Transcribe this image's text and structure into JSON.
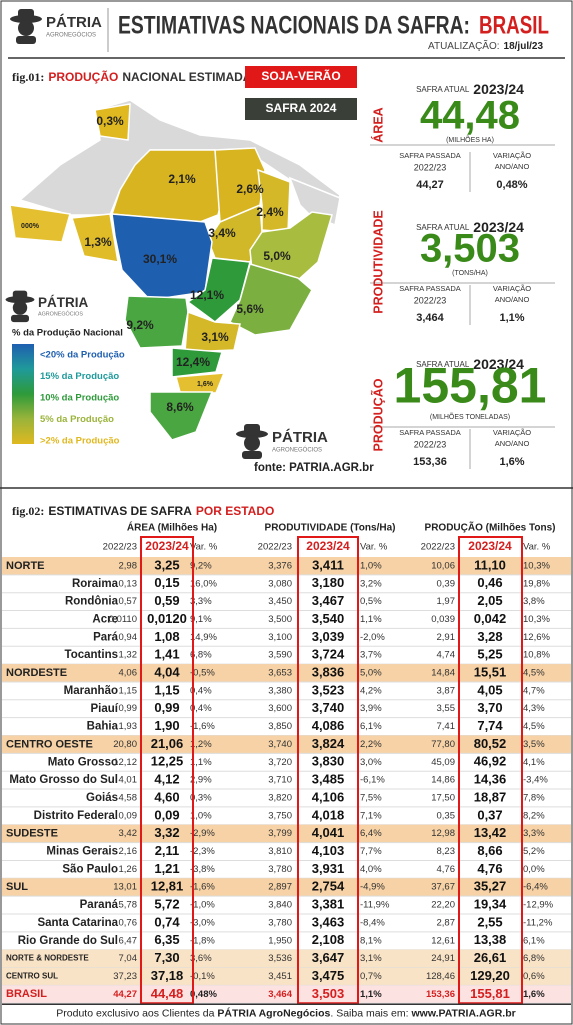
{
  "header": {
    "logo": "PÁTRIA",
    "logo_sub": "AGRONEGÓCIOS",
    "title": "ESTIMATIVAS NACIONAIS DA SAFRA:",
    "title_highlight": "BRASIL",
    "update_label": "ATUALIZAÇÃO:",
    "update_date": "18/jul/23"
  },
  "fig01": {
    "label": "fig.01:",
    "title_1": "PRODUÇÃO",
    "title_2": "NACIONAL ESTIMADA",
    "badge_crop": "SOJA-VERÃO",
    "badge_season": "SAFRA 2024",
    "map_labels": [
      "0,3%",
      "2,1%",
      "2,6%",
      "2,4%",
      "3,4%",
      "000%",
      "1,3%",
      "30,1%",
      "5,0%",
      "12,1%",
      "5,6%",
      "9,2%",
      "3,1%",
      "12,4%",
      "1,6%",
      "8,6%"
    ],
    "legend_title": "% da Produção Nacional",
    "legend": [
      {
        "text": "<20% da Produção",
        "color": "#1f5fb0"
      },
      {
        "text": "15% da Produção",
        "color": "#1f9a9a"
      },
      {
        "text": "10% da Produção",
        "color": "#2e9a3a"
      },
      {
        "text": "5% da Produção",
        "color": "#9ab43a"
      },
      {
        "text": ">2% da Produção",
        "color": "#e0b820"
      }
    ],
    "logo": "PÁTRIA",
    "logo_sub": "AGRONEGÓCIOS",
    "source": "fonte: PATRIA.AGR.br"
  },
  "summary": [
    {
      "side_label": "ÁREA",
      "current_label": "SAFRA ATUAL",
      "current_season": "2023/24",
      "value": "44,48",
      "unit": "(MILHÕES HA)",
      "previous_label": "SAFRA PASSADA",
      "previous_season": "2022/23",
      "previous_value": "44,27",
      "change_label": [
        "VARIAÇÃO",
        "ANO/ANO"
      ],
      "change_value": "0,48%"
    },
    {
      "side_label": "PRODUTIVIDADE",
      "current_label": "SAFRA ATUAL",
      "current_season": "2023/24",
      "value": "3,503",
      "unit": "(TONS/HA)",
      "previous_label": "SAFRA PASSADA",
      "previous_season": "2022/23",
      "previous_value": "3,464",
      "change_label": [
        "VARIAÇÃO",
        "ANO/ANO"
      ],
      "change_value": "1,1%"
    },
    {
      "side_label": "PRODUÇÃO",
      "current_label": "SAFRA ATUAL",
      "current_season": "2023/24",
      "value": "155,81",
      "unit": "(MILHÕES TONELADAS)",
      "previous_label": "SAFRA PASSADA",
      "previous_season": "2022/23",
      "previous_value": "153,36",
      "change_label": [
        "VARIAÇÃO",
        "ANO/ANO"
      ],
      "change_value": "1,6%"
    }
  ],
  "fig02": {
    "label": "fig.02:",
    "title_1": "ESTIMATIVAS DE SAFRA",
    "title_2": "POR ESTADO",
    "groups": [
      "ÁREA (Milhões Ha)",
      "PRODUTIVIDADE (Tons/Ha)",
      "PRODUÇÃO (Milhões Tons)"
    ],
    "columns": [
      "2022/23",
      "2023/24",
      "Var. %"
    ],
    "rows": [
      [
        "NORTE",
        "2,98",
        "3,25",
        "9,2%",
        "3,376",
        "3,411",
        "1,0%",
        "10,06",
        "11,10",
        "10,3%"
      ],
      [
        "Roraima",
        "0,13",
        "0,15",
        "16,0%",
        "3,080",
        "3,180",
        "3,2%",
        "0,39",
        "0,46",
        "19,8%"
      ],
      [
        "Rondônia",
        "0,57",
        "0,59",
        "3,3%",
        "3,450",
        "3,467",
        "0,5%",
        "1,97",
        "2,05",
        "3,8%"
      ],
      [
        "Acre",
        "0,0110",
        "0,0120",
        "9,1%",
        "3,500",
        "3,540",
        "1,1%",
        "0,039",
        "0,042",
        "10,3%"
      ],
      [
        "Pará",
        "0,94",
        "1,08",
        "14,9%",
        "3,100",
        "3,039",
        "-2,0%",
        "2,91",
        "3,28",
        "12,6%"
      ],
      [
        "Tocantins",
        "1,32",
        "1,41",
        "6,8%",
        "3,590",
        "3,724",
        "3,7%",
        "4,74",
        "5,25",
        "10,8%"
      ],
      [
        "NORDESTE",
        "4,06",
        "4,04",
        "-0,5%",
        "3,653",
        "3,836",
        "5,0%",
        "14,84",
        "15,51",
        "4,5%"
      ],
      [
        "Maranhão",
        "1,15",
        "1,15",
        "0,4%",
        "3,380",
        "3,523",
        "4,2%",
        "3,87",
        "4,05",
        "4,7%"
      ],
      [
        "Piauí",
        "0,99",
        "0,99",
        "0,4%",
        "3,600",
        "3,740",
        "3,9%",
        "3,55",
        "3,70",
        "4,3%"
      ],
      [
        "Bahia",
        "1,93",
        "1,90",
        "-1,6%",
        "3,850",
        "4,086",
        "6,1%",
        "7,41",
        "7,74",
        "4,5%"
      ],
      [
        "CENTRO OESTE",
        "20,80",
        "21,06",
        "1,2%",
        "3,740",
        "3,824",
        "2,2%",
        "77,80",
        "80,52",
        "3,5%"
      ],
      [
        "Mato Grosso",
        "12,12",
        "12,25",
        "1,1%",
        "3,720",
        "3,830",
        "3,0%",
        "45,09",
        "46,92",
        "4,1%"
      ],
      [
        "Mato Grosso do Sul",
        "4,01",
        "4,12",
        "2,9%",
        "3,710",
        "3,485",
        "-6,1%",
        "14,86",
        "14,36",
        "-3,4%"
      ],
      [
        "Goiás",
        "4,58",
        "4,60",
        "0,3%",
        "3,820",
        "4,106",
        "7,5%",
        "17,50",
        "18,87",
        "7,8%"
      ],
      [
        "Distrito Federal",
        "0,09",
        "0,09",
        "1,0%",
        "3,750",
        "4,018",
        "7,1%",
        "0,35",
        "0,37",
        "8,2%"
      ],
      [
        "SUDESTE",
        "3,42",
        "3,32",
        "-2,9%",
        "3,799",
        "4,041",
        "6,4%",
        "12,98",
        "13,42",
        "3,3%"
      ],
      [
        "Minas Gerais",
        "2,16",
        "2,11",
        "-2,3%",
        "3,810",
        "4,103",
        "7,7%",
        "8,23",
        "8,66",
        "5,2%"
      ],
      [
        "São Paulo",
        "1,26",
        "1,21",
        "-3,8%",
        "3,780",
        "3,931",
        "4,0%",
        "4,76",
        "4,76",
        "0,0%"
      ],
      [
        "SUL",
        "13,01",
        "12,81",
        "-1,6%",
        "2,897",
        "2,754",
        "-4,9%",
        "37,67",
        "35,27",
        "-6,4%"
      ],
      [
        "Paraná",
        "5,78",
        "5,72",
        "-1,0%",
        "3,840",
        "3,381",
        "-11,9%",
        "22,20",
        "19,34",
        "-12,9%"
      ],
      [
        "Santa Catarina",
        "0,76",
        "0,74",
        "-3,0%",
        "3,780",
        "3,463",
        "-8,4%",
        "2,87",
        "2,55",
        "-11,2%"
      ],
      [
        "Rio Grande do Sul",
        "6,47",
        "6,35",
        "-1,8%",
        "1,950",
        "2,108",
        "8,1%",
        "12,61",
        "13,38",
        "6,1%"
      ],
      [
        "NORTE & NORDESTE",
        "7,04",
        "7,30",
        "3,6%",
        "3,536",
        "3,647",
        "3,1%",
        "24,91",
        "26,61",
        "6,8%"
      ],
      [
        "CENTRO SUL",
        "37,23",
        "37,18",
        "-0,1%",
        "3,451",
        "3,475",
        "0,7%",
        "128,46",
        "129,20",
        "0,6%"
      ],
      [
        "BRASIL",
        "44,27",
        "44,48",
        "0,48%",
        "3,464",
        "3,503",
        "1,1%",
        "153,36",
        "155,81",
        "1,6%"
      ]
    ]
  },
  "footer": {
    "parts": [
      "Produto exclusivo aos Clientes da ",
      "PÁTRIA AgroNegócios",
      ". Saiba mais em: ",
      "www.PATRIA.AGR.br"
    ]
  }
}
